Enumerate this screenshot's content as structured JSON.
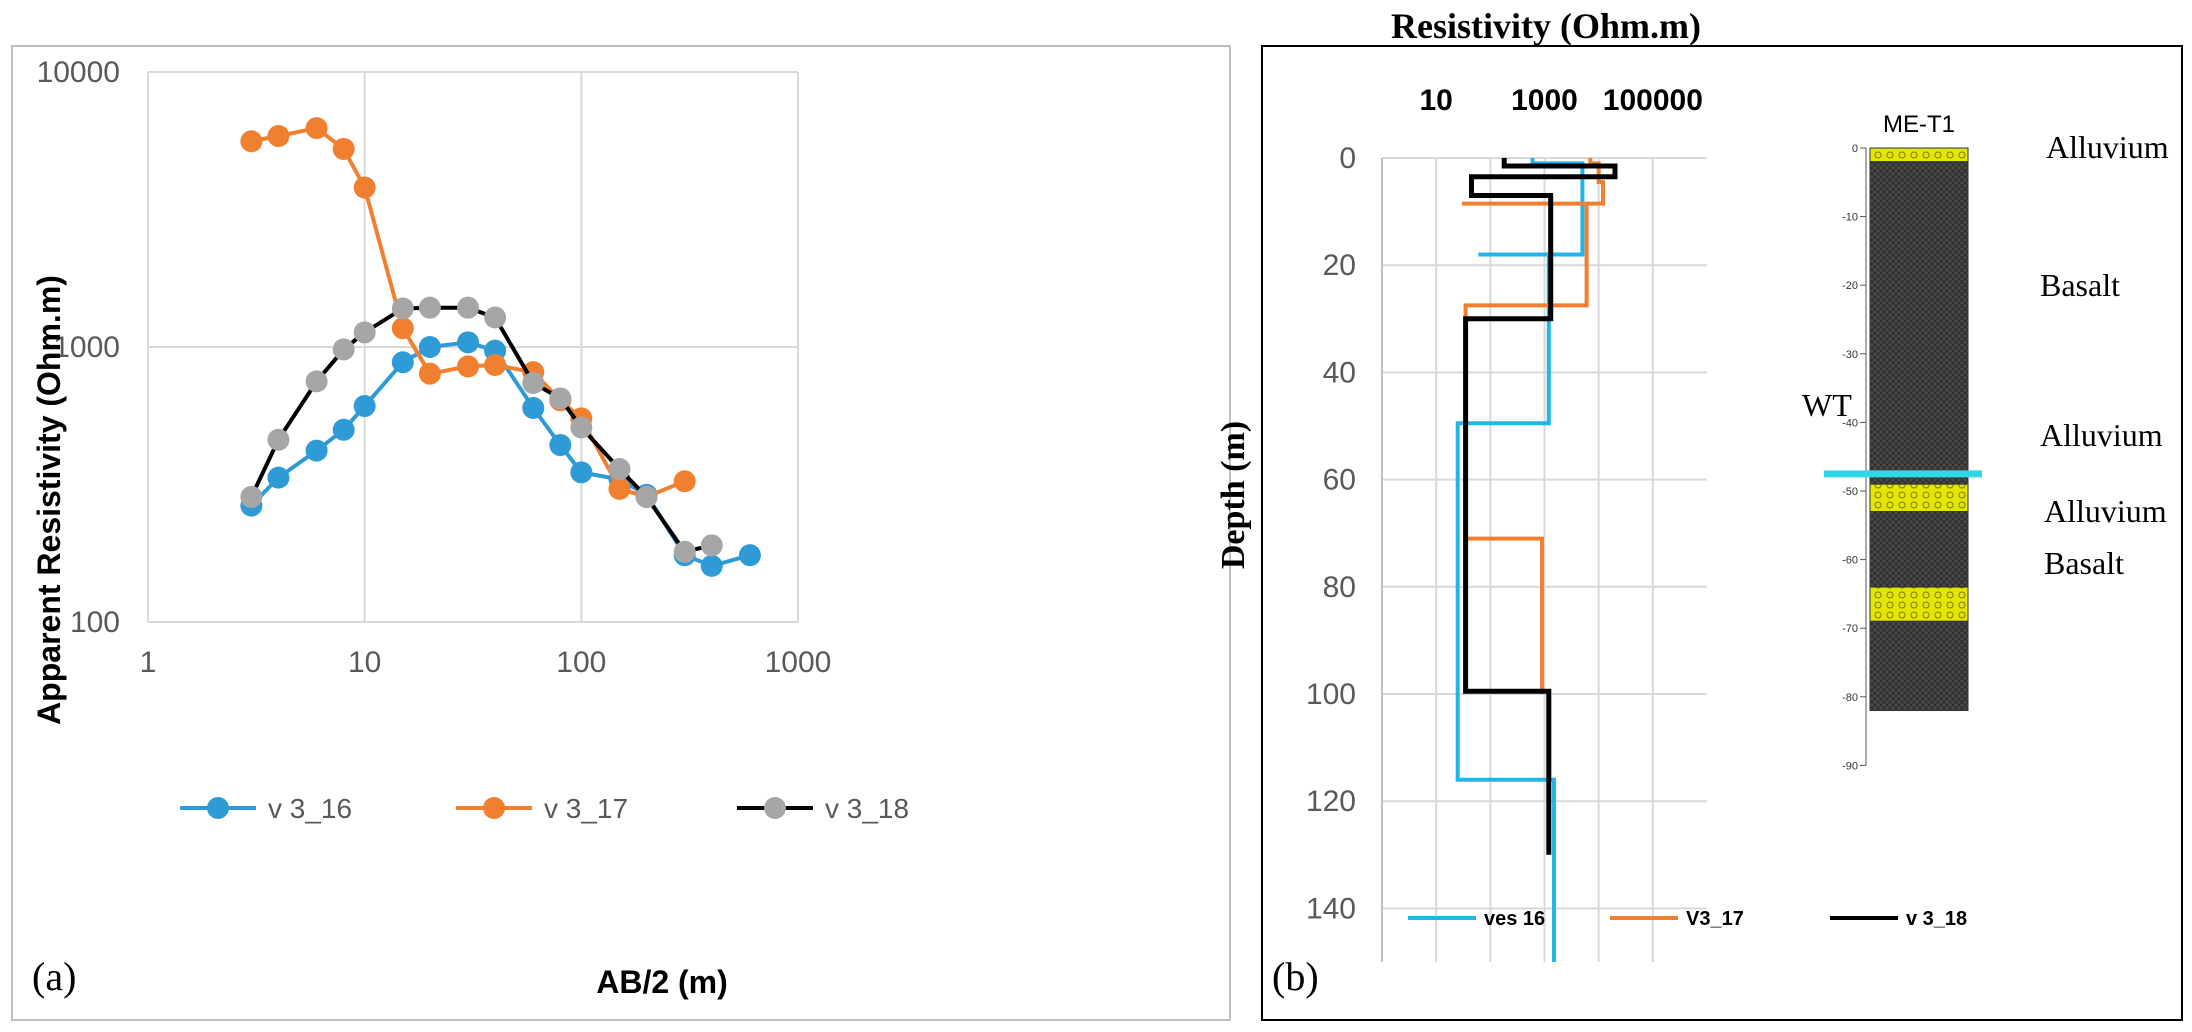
{
  "colors": {
    "v3_16": "#2E9BD6",
    "v3_17": "#F08030",
    "v3_18": "#000000",
    "ves16_b": "#22B5E8",
    "marker18": "#A6A6A6",
    "grid": "#D9D9D9",
    "basalt": "#3F3F3F",
    "alluvium": "#E5E500",
    "water_table": "#33D6E6"
  },
  "chart_data": [
    {
      "panel": "(a)",
      "type": "line",
      "xscale": "log",
      "yscale": "log",
      "xlabel": "AB/2 (m)",
      "ylabel": "Apparent Resistivity (Ohm.m)",
      "xlim": [
        1,
        1000
      ],
      "ylim": [
        100,
        10000
      ],
      "xticks": [
        "1",
        "10",
        "100",
        "1000"
      ],
      "yticks": [
        "100",
        "1000",
        "10000"
      ],
      "legend": "bottom-left",
      "series": [
        {
          "name": "v 3_16",
          "x": [
            3,
            4,
            6,
            8,
            10,
            15,
            20,
            30,
            40,
            60,
            80,
            100,
            150,
            200,
            300,
            400,
            600
          ],
          "y": [
            265,
            335,
            420,
            500,
            610,
            880,
            1000,
            1040,
            970,
            600,
            440,
            350,
            330,
            290,
            175,
            160,
            175
          ]
        },
        {
          "name": "v 3_17",
          "x": [
            3,
            4,
            6,
            8,
            10,
            15,
            20,
            30,
            40,
            60,
            80,
            100,
            150,
            200,
            300
          ],
          "y": [
            5600,
            5850,
            6250,
            5250,
            3800,
            1170,
            800,
            850,
            860,
            810,
            640,
            550,
            305,
            285,
            325
          ]
        },
        {
          "name": "v 3_18",
          "x": [
            3,
            4,
            6,
            8,
            10,
            15,
            20,
            30,
            40,
            60,
            80,
            100,
            150,
            200,
            300,
            400
          ],
          "y": [
            285,
            460,
            750,
            980,
            1130,
            1380,
            1390,
            1390,
            1280,
            740,
            650,
            510,
            360,
            285,
            180,
            190
          ]
        }
      ]
    },
    {
      "panel": "(b)",
      "type": "line",
      "xscale": "log",
      "title": "Resistivity (Ohm.m)",
      "ylabel": "Depth (m)",
      "xlim": [
        1,
        1000000
      ],
      "ylim": [
        0,
        150
      ],
      "xticks": [
        "10",
        "1000",
        "100000"
      ],
      "yticks": [
        "0",
        "20",
        "40",
        "60",
        "80",
        "100",
        "120",
        "140"
      ],
      "legend": "bottom",
      "series": [
        {
          "name": "ves 16",
          "x": [
            600,
            600,
            5000,
            5000,
            60,
            60,
            1200,
            1200,
            25,
            25,
            1500,
            1500
          ],
          "y": [
            0,
            1,
            1,
            18,
            18,
            18,
            18,
            49.5,
            49.5,
            116,
            116,
            150
          ]
        },
        {
          "name": "V3_17",
          "x": [
            7000,
            7000,
            10000,
            10000,
            12000,
            12000,
            30,
            30,
            6000,
            6000,
            35,
            35,
            900,
            900
          ],
          "y": [
            0,
            1,
            1,
            4.5,
            4.5,
            8.5,
            8.5,
            8.5,
            8.5,
            27.5,
            27.5,
            71,
            71,
            100
          ]
        },
        {
          "name": "v 3_18",
          "x": [
            180,
            180,
            20000,
            20000,
            45,
            45,
            1300,
            1300,
            35,
            35,
            1200,
            1200
          ],
          "y": [
            0,
            1.5,
            1.5,
            3.5,
            3.5,
            7,
            7,
            30,
            30,
            99.5,
            99.5,
            130
          ]
        }
      ]
    }
  ],
  "panel_a": {
    "label": "(a)"
  },
  "panel_b": {
    "label": "(b)"
  },
  "log": {
    "title": "ME-T1",
    "depth_ticks": [
      "0",
      "-10",
      "-20",
      "-30",
      "-40",
      "-50",
      "-60",
      "-70",
      "-80",
      "-90"
    ],
    "layers": [
      {
        "name": "Alluvium",
        "from": 0,
        "to": -2
      },
      {
        "name": "Basalt",
        "from": -2,
        "to": -49
      },
      {
        "name": "Alluvium",
        "from": -49,
        "to": -53
      },
      {
        "name": "Basalt",
        "from": -53,
        "to": -64
      },
      {
        "name": "Alluvium",
        "from": -64,
        "to": -69
      },
      {
        "name": "Basalt",
        "from": -69,
        "to": -82
      }
    ],
    "labels": [
      "Alluvium",
      "Basalt",
      "WT",
      "Alluvium",
      "Alluvium",
      "Basalt"
    ],
    "water_table_depth": -47.5
  }
}
